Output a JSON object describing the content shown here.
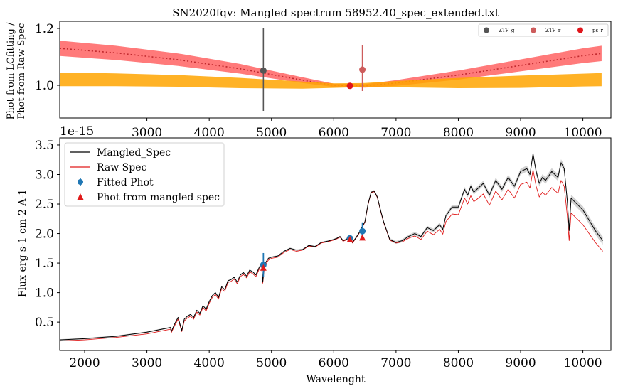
{
  "chart_data": [
    {
      "type": "line",
      "title": "SN2020fqv: Mangled spectrum 58952.40_spec_extended.txt",
      "ylabel_lines": [
        "Phot from LCfitting /",
        "Phot from Raw Spec"
      ],
      "xlim": [
        1600,
        10450
      ],
      "ylim": [
        0.885,
        1.225
      ],
      "x_ticks": [
        3000,
        4000,
        5000,
        6000,
        7000,
        8000,
        9000,
        10000
      ],
      "x_tick_labels": [
        "3000",
        "4000",
        "5000",
        "6000",
        "7000",
        "8000",
        "9000",
        "10000"
      ],
      "y_ticks": [
        1.0,
        1.2
      ],
      "y_tick_labels": [
        "1.0",
        "1.2"
      ],
      "offset_text": "1e-15",
      "legend_position": "top-right",
      "legend": [
        {
          "label": "ZTF_g",
          "color": "#555555"
        },
        {
          "label": "ZTF_r",
          "color": "#cd5c5c"
        },
        {
          "label": "ps_r",
          "color": "#e0151b"
        }
      ],
      "series": [
        {
          "kind": "band",
          "color": "#ff6b6b",
          "x": [
            1600,
            2500,
            3500,
            4500,
            5500,
            6000,
            6500,
            7000,
            8000,
            9000,
            10000,
            10300
          ],
          "center": [
            1.13,
            1.114,
            1.09,
            1.058,
            1.018,
            1.0,
            0.998,
            1.008,
            1.036,
            1.07,
            1.104,
            1.112
          ],
          "half_width": [
            0.027,
            0.025,
            0.022,
            0.017,
            0.01,
            0.006,
            0.006,
            0.01,
            0.016,
            0.021,
            0.026,
            0.027
          ],
          "dotted_line_color": "#c0282d"
        },
        {
          "kind": "band",
          "color": "#ffa500",
          "x": [
            1600,
            2500,
            3500,
            4500,
            5500,
            6000,
            6500,
            7000,
            8000,
            9000,
            10000,
            10300
          ],
          "lower": [
            0.997,
            0.997,
            0.995,
            0.99,
            0.988,
            0.991,
            0.994,
            0.993,
            0.99,
            0.991,
            0.996,
            0.997
          ],
          "upper": [
            1.045,
            1.042,
            1.036,
            1.026,
            1.013,
            1.007,
            1.008,
            1.015,
            1.026,
            1.034,
            1.041,
            1.043
          ]
        }
      ],
      "points": [
        {
          "label": "ZTF_g",
          "x": 4870,
          "y": 1.052,
          "yerr_low": 0.142,
          "yerr_high": 0.148,
          "color": "#555555"
        },
        {
          "label": "ZTF_r",
          "x": 6460,
          "y": 1.055,
          "yerr_low": 0.075,
          "yerr_high": 0.085,
          "color": "#cd5c5c"
        },
        {
          "label": "ps_r",
          "x": 6260,
          "y": 0.998,
          "yerr_low": 0.0,
          "yerr_high": 0.0,
          "color": "#e0151b"
        }
      ]
    },
    {
      "type": "line",
      "xlabel": "Wavelenght",
      "ylabel": "Flux erg s-1 cm-2 A-1",
      "xlim": [
        1600,
        10450
      ],
      "ylim": [
        0.02,
        3.62
      ],
      "x_ticks": [
        2000,
        3000,
        4000,
        5000,
        6000,
        7000,
        8000,
        9000,
        10000
      ],
      "x_tick_labels": [
        "2000",
        "3000",
        "4000",
        "5000",
        "6000",
        "7000",
        "8000",
        "9000",
        "10000"
      ],
      "y_ticks": [
        0.5,
        1.0,
        1.5,
        2.0,
        2.5,
        3.0,
        3.5
      ],
      "y_tick_labels": [
        "0.5",
        "1.0",
        "1.5",
        "2.0",
        "2.5",
        "3.0",
        "3.5"
      ],
      "legend_position": "top-left",
      "legend": [
        {
          "label": "Mangled_Spec",
          "kind": "line",
          "color": "#000000"
        },
        {
          "label": "Raw Spec",
          "kind": "line",
          "color": "#e01b1b"
        },
        {
          "label": "Fitted Phot",
          "kind": "errorpoint",
          "color": "#1f77b4"
        },
        {
          "label": "Phot from mangled spec",
          "kind": "triangle",
          "color": "#e01b1b"
        }
      ],
      "series": [
        {
          "name": "Mangled_Spec",
          "color": "#000000",
          "x": [
            1600,
            2000,
            2500,
            3000,
            3380,
            3390,
            3450,
            3500,
            3560,
            3600,
            3650,
            3700,
            3750,
            3800,
            3850,
            3900,
            3950,
            4000,
            4050,
            4100,
            4150,
            4200,
            4250,
            4300,
            4350,
            4400,
            4450,
            4500,
            4550,
            4600,
            4650,
            4700,
            4750,
            4800,
            4840,
            4860,
            4880,
            4900,
            4950,
            5000,
            5100,
            5200,
            5300,
            5400,
            5500,
            5600,
            5700,
            5800,
            5900,
            6000,
            6050,
            6100,
            6150,
            6200,
            6250,
            6300,
            6350,
            6400,
            6450,
            6500,
            6550,
            6600,
            6650,
            6700,
            6750,
            6800,
            6900,
            7000,
            7100,
            7200,
            7300,
            7400,
            7500,
            7600,
            7700,
            7750,
            7800,
            7900,
            8000,
            8100,
            8150,
            8200,
            8250,
            8300,
            8400,
            8500,
            8600,
            8700,
            8800,
            8900,
            9000,
            9100,
            9150,
            9200,
            9250,
            9300,
            9350,
            9400,
            9500,
            9600,
            9650,
            9700,
            9750,
            9780,
            9810,
            10000,
            10200,
            10320
          ],
          "y": [
            0.2,
            0.22,
            0.26,
            0.33,
            0.41,
            0.34,
            0.48,
            0.58,
            0.36,
            0.55,
            0.6,
            0.63,
            0.58,
            0.7,
            0.65,
            0.78,
            0.72,
            0.85,
            0.95,
            1.0,
            0.92,
            1.1,
            1.05,
            1.2,
            1.22,
            1.26,
            1.18,
            1.3,
            1.34,
            1.28,
            1.38,
            1.35,
            1.3,
            1.42,
            1.5,
            1.18,
            1.4,
            1.5,
            1.58,
            1.6,
            1.62,
            1.7,
            1.75,
            1.72,
            1.73,
            1.8,
            1.78,
            1.85,
            1.87,
            1.9,
            1.92,
            1.95,
            1.88,
            1.9,
            1.95,
            1.85,
            1.92,
            2.0,
            2.1,
            2.2,
            2.5,
            2.7,
            2.72,
            2.62,
            2.4,
            2.2,
            1.9,
            1.85,
            1.88,
            1.95,
            2.0,
            1.95,
            2.1,
            2.05,
            2.15,
            2.07,
            2.3,
            2.45,
            2.45,
            2.75,
            2.65,
            2.8,
            2.7,
            2.75,
            2.85,
            2.65,
            2.9,
            2.75,
            2.95,
            2.8,
            3.05,
            3.1,
            3.0,
            3.35,
            3.05,
            2.85,
            2.95,
            2.9,
            3.05,
            2.95,
            3.2,
            3.1,
            2.55,
            2.05,
            2.6,
            2.4,
            2.05,
            1.88
          ]
        },
        {
          "name": "Raw Spec",
          "color": "#e01b1b",
          "x": [
            1600,
            2000,
            2500,
            3000,
            3380,
            3390,
            3450,
            3500,
            3560,
            3600,
            3650,
            3700,
            3750,
            3800,
            3850,
            3900,
            3950,
            4000,
            4050,
            4100,
            4150,
            4200,
            4250,
            4300,
            4350,
            4400,
            4450,
            4500,
            4550,
            4600,
            4650,
            4700,
            4750,
            4800,
            4840,
            4860,
            4880,
            4900,
            4950,
            5000,
            5100,
            5200,
            5300,
            5400,
            5500,
            5600,
            5700,
            5800,
            5900,
            6000,
            6050,
            6100,
            6150,
            6200,
            6250,
            6300,
            6350,
            6400,
            6450,
            6500,
            6550,
            6600,
            6650,
            6700,
            6750,
            6800,
            6900,
            7000,
            7100,
            7200,
            7300,
            7400,
            7500,
            7600,
            7700,
            7750,
            7800,
            7900,
            8000,
            8100,
            8150,
            8200,
            8250,
            8300,
            8400,
            8500,
            8600,
            8700,
            8800,
            8900,
            9000,
            9100,
            9150,
            9200,
            9250,
            9300,
            9350,
            9400,
            9500,
            9600,
            9650,
            9700,
            9750,
            9780,
            9810,
            10000,
            10200,
            10320
          ],
          "y": [
            0.18,
            0.2,
            0.24,
            0.3,
            0.38,
            0.32,
            0.45,
            0.55,
            0.34,
            0.52,
            0.57,
            0.6,
            0.55,
            0.67,
            0.62,
            0.75,
            0.69,
            0.82,
            0.92,
            0.97,
            0.89,
            1.07,
            1.02,
            1.17,
            1.19,
            1.23,
            1.15,
            1.27,
            1.31,
            1.25,
            1.35,
            1.32,
            1.27,
            1.39,
            1.47,
            1.16,
            1.37,
            1.47,
            1.55,
            1.58,
            1.6,
            1.68,
            1.73,
            1.7,
            1.72,
            1.79,
            1.77,
            1.84,
            1.86,
            1.89,
            1.91,
            1.94,
            1.87,
            1.89,
            1.94,
            1.84,
            1.91,
            1.99,
            2.09,
            2.19,
            2.49,
            2.69,
            2.71,
            2.61,
            2.39,
            2.19,
            1.89,
            1.84,
            1.86,
            1.92,
            1.96,
            1.9,
            2.04,
            1.98,
            2.07,
            1.99,
            2.2,
            2.33,
            2.32,
            2.6,
            2.5,
            2.64,
            2.54,
            2.58,
            2.67,
            2.48,
            2.72,
            2.57,
            2.75,
            2.6,
            2.83,
            2.87,
            2.77,
            3.08,
            2.8,
            2.62,
            2.7,
            2.65,
            2.78,
            2.68,
            2.9,
            2.8,
            2.3,
            1.88,
            2.35,
            2.15,
            1.85,
            1.7
          ]
        }
      ],
      "fitted_phot": [
        {
          "x": 4870,
          "y": 1.47,
          "yerr": 0.2
        },
        {
          "x": 6260,
          "y": 1.92,
          "yerr": 0.02
        },
        {
          "x": 6460,
          "y": 2.04,
          "yerr": 0.15
        }
      ],
      "phot_from_mangled_spec": [
        {
          "x": 4870,
          "y": 1.42
        },
        {
          "x": 6260,
          "y": 1.9
        },
        {
          "x": 6460,
          "y": 1.93
        }
      ]
    }
  ]
}
